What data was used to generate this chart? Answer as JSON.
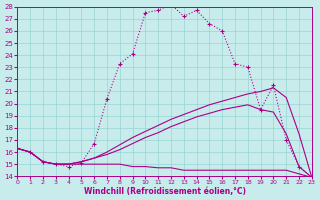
{
  "xlabel": "Windchill (Refroidissement éolien,°C)",
  "bg_color": "#c8ecec",
  "line_color": "#aa0088",
  "grid_color": "#96d4d4",
  "xlim": [
    0,
    23
  ],
  "ylim": [
    14,
    28
  ],
  "xtick_vals": [
    0,
    1,
    2,
    3,
    4,
    5,
    6,
    7,
    8,
    9,
    10,
    11,
    12,
    13,
    14,
    15,
    16,
    17,
    18,
    19,
    20,
    21,
    22,
    23
  ],
  "ytick_vals": [
    14,
    15,
    16,
    17,
    18,
    19,
    20,
    21,
    22,
    23,
    24,
    25,
    26,
    27,
    28
  ],
  "s1_x": [
    0,
    1,
    2,
    3,
    4,
    5,
    6,
    7,
    8,
    9,
    10,
    11,
    12,
    13,
    14,
    15,
    16,
    17,
    18,
    19,
    20,
    21,
    22,
    23
  ],
  "s1_y": [
    16.3,
    16.0,
    15.2,
    15.0,
    14.8,
    15.1,
    16.7,
    20.4,
    23.3,
    24.1,
    27.5,
    27.7,
    28.2,
    27.2,
    27.7,
    26.6,
    26.0,
    23.3,
    23.0,
    19.5,
    21.5,
    17.0,
    14.8,
    13.9
  ],
  "s2_x": [
    0,
    1,
    2,
    3,
    4,
    5,
    6,
    7,
    8,
    9,
    10,
    11,
    12,
    13,
    14,
    15,
    16,
    17,
    18,
    19,
    20,
    21,
    22,
    23
  ],
  "s2_y": [
    16.3,
    16.0,
    15.2,
    15.0,
    15.0,
    15.2,
    15.5,
    16.0,
    16.6,
    17.2,
    17.7,
    18.2,
    18.7,
    19.1,
    19.5,
    19.9,
    20.2,
    20.5,
    20.8,
    21.0,
    21.3,
    20.5,
    17.5,
    13.9
  ],
  "s3_x": [
    0,
    1,
    2,
    3,
    4,
    5,
    6,
    7,
    8,
    9,
    10,
    11,
    12,
    13,
    14,
    15,
    16,
    17,
    18,
    19,
    20,
    21,
    22,
    23
  ],
  "s3_y": [
    16.3,
    16.0,
    15.2,
    15.0,
    15.0,
    15.2,
    15.5,
    15.8,
    16.2,
    16.7,
    17.2,
    17.6,
    18.1,
    18.5,
    18.9,
    19.2,
    19.5,
    19.7,
    19.9,
    19.5,
    19.3,
    17.5,
    14.8,
    13.9
  ],
  "s4_x": [
    0,
    1,
    2,
    3,
    4,
    5,
    6,
    7,
    8,
    9,
    10,
    11,
    12,
    13,
    14,
    15,
    16,
    17,
    18,
    19,
    20,
    21,
    22,
    23
  ],
  "s4_y": [
    16.3,
    16.0,
    15.2,
    15.0,
    15.0,
    15.0,
    15.0,
    15.0,
    15.0,
    14.8,
    14.8,
    14.7,
    14.7,
    14.5,
    14.5,
    14.5,
    14.5,
    14.5,
    14.5,
    14.5,
    14.5,
    14.5,
    14.2,
    13.9
  ]
}
